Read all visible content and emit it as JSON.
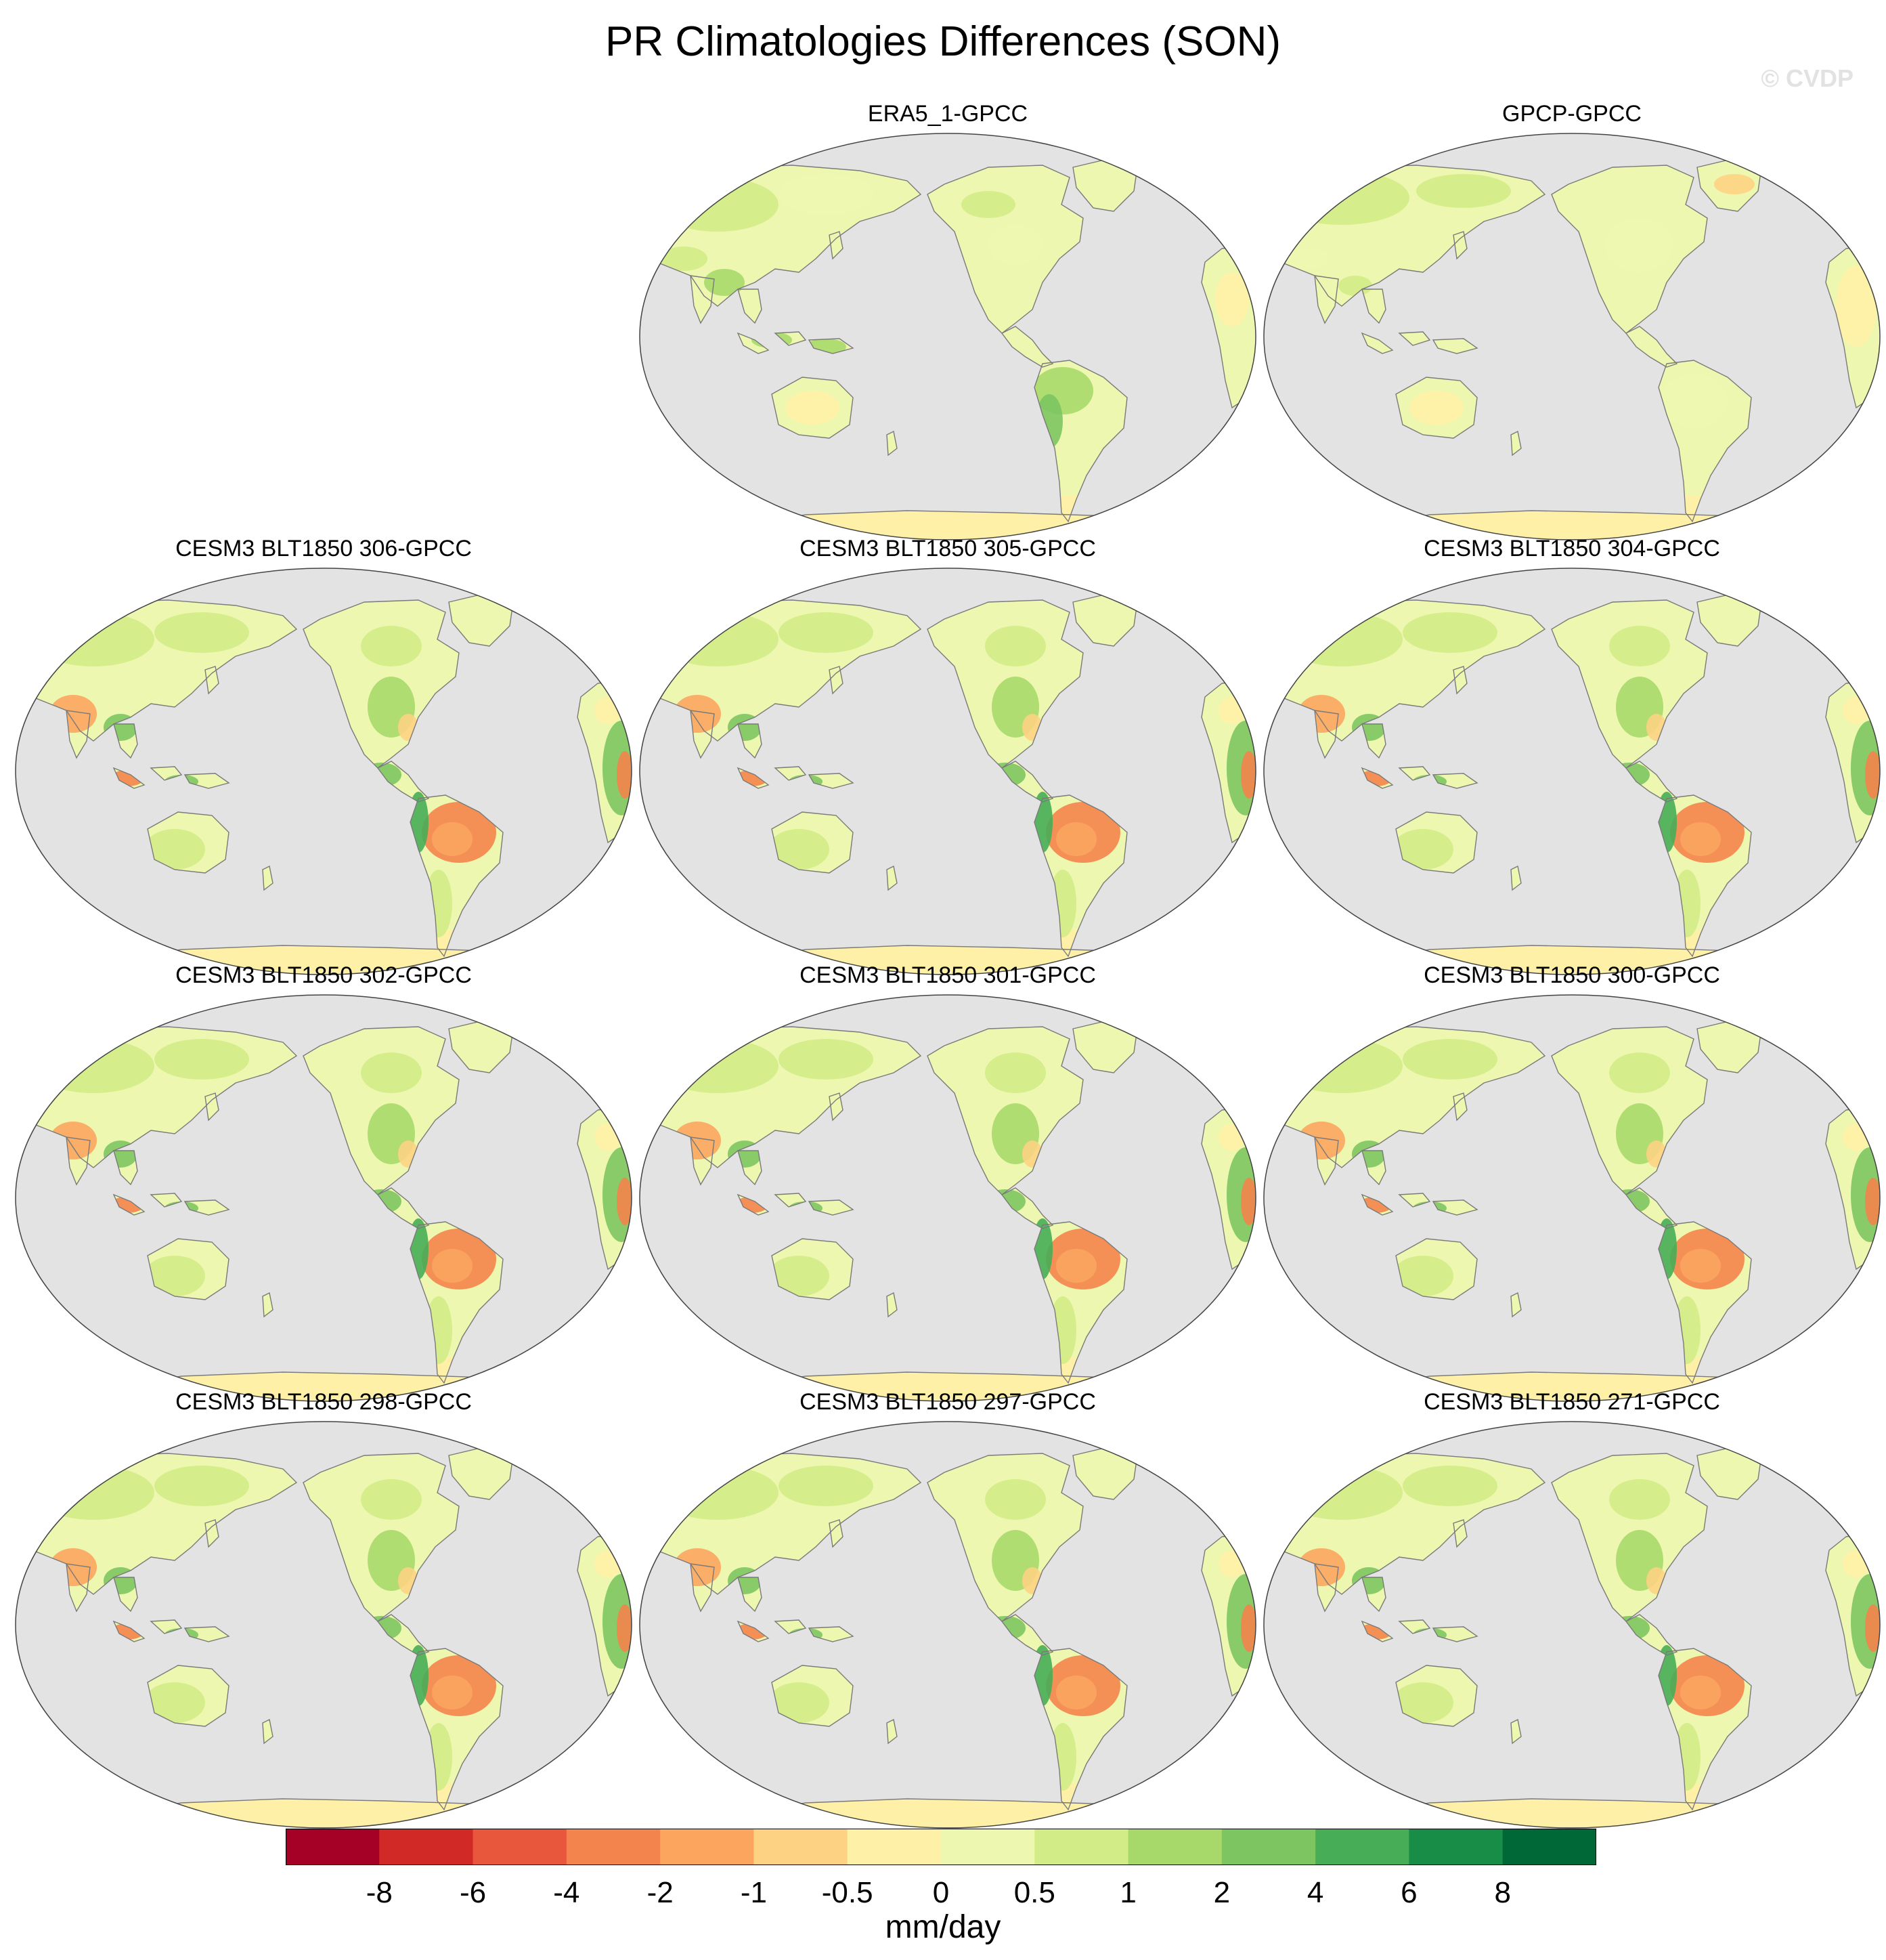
{
  "title": "PR Climatologies Differences (SON)",
  "watermark": "© CVDP",
  "colors": {
    "ocean": "#e3e3e3",
    "coast": "#7a7a7a",
    "border": "#444444"
  },
  "panels": [
    {
      "title": "ERA5_1-GPCC",
      "style": "obs1"
    },
    {
      "title": "GPCP-GPCC",
      "style": "obs2"
    },
    {
      "title": "CESM3 BLT1850 306-GPCC",
      "style": "model"
    },
    {
      "title": "CESM3 BLT1850 305-GPCC",
      "style": "model"
    },
    {
      "title": "CESM3 BLT1850 304-GPCC",
      "style": "model"
    },
    {
      "title": "CESM3 BLT1850 302-GPCC",
      "style": "model"
    },
    {
      "title": "CESM3 BLT1850 301-GPCC",
      "style": "model"
    },
    {
      "title": "CESM3 BLT1850 300-GPCC",
      "style": "model"
    },
    {
      "title": "CESM3 BLT1850 298-GPCC",
      "style": "model"
    },
    {
      "title": "CESM3 BLT1850 297-GPCC",
      "style": "model"
    },
    {
      "title": "CESM3 BLT1850 271-GPCC",
      "style": "model"
    }
  ],
  "colorbar": {
    "units": "mm/day",
    "tick_labels": [
      "-8",
      "-6",
      "-4",
      "-2",
      "-1",
      "-0.5",
      "0",
      "0.5",
      "1",
      "2",
      "4",
      "6",
      "8"
    ],
    "colors": [
      "#a50026",
      "#d12a26",
      "#e8573c",
      "#f4844d",
      "#fba55f",
      "#fdd383",
      "#fef1a7",
      "#eef7b0",
      "#d2ec87",
      "#a7d96a",
      "#7cc560",
      "#47ad57",
      "#188d48",
      "#006837"
    ]
  }
}
